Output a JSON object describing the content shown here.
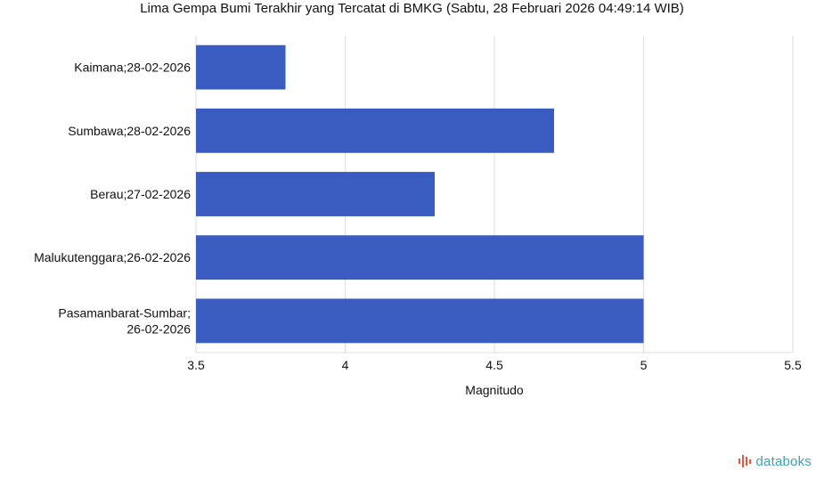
{
  "chart_data": {
    "type": "bar",
    "orientation": "horizontal",
    "title": "Lima Gempa Bumi Terakhir yang Tercatat di BMKG (Sabtu, 28 Februari 2026 04:49:14 WIB)",
    "xlabel": "Magnitudo",
    "ylabel": "",
    "categories": [
      [
        "Kaimana;28-02-2026"
      ],
      [
        "Sumbawa;28-02-2026"
      ],
      [
        "Berau;27-02-2026"
      ],
      [
        "Malukutenggara;26-02-2026"
      ],
      [
        "Pasamanbarat-Sumbar;",
        "26-02-2026"
      ]
    ],
    "values": [
      3.8,
      4.7,
      4.3,
      5.0,
      5.0
    ],
    "xlim": [
      3.5,
      5.5
    ],
    "xticks": [
      "3.5",
      "4",
      "4.5",
      "5",
      "5.5"
    ],
    "grid": true,
    "bar_color": "#3a5bbf",
    "grid_color": "#dddddd"
  },
  "brand": {
    "name": "databoks",
    "icon": "databoks-bars-icon",
    "color": "#3aa3b0",
    "icon_color": "#e8573c"
  }
}
